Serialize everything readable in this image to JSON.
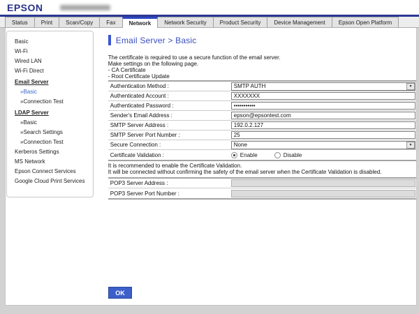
{
  "header": {
    "brand": "EPSON"
  },
  "tabs": {
    "active": "Network",
    "items": [
      {
        "label": "Status"
      },
      {
        "label": "Print"
      },
      {
        "label": "Scan/Copy"
      },
      {
        "label": "Fax"
      },
      {
        "label": "Network"
      },
      {
        "label": "Network Security"
      },
      {
        "label": "Product Security"
      },
      {
        "label": "Device Management"
      },
      {
        "label": "Epson Open Platform"
      }
    ]
  },
  "sidebar": {
    "items": [
      {
        "label": "Basic"
      },
      {
        "label": "Wi-Fi"
      },
      {
        "label": "Wired LAN"
      },
      {
        "label": "Wi-Fi Direct"
      },
      {
        "label": "Email Server"
      },
      {
        "label": "»Basic"
      },
      {
        "label": "»Connection Test"
      },
      {
        "label": "LDAP Server"
      },
      {
        "label": "»Basic"
      },
      {
        "label": "»Search Settings"
      },
      {
        "label": "»Connection Test"
      },
      {
        "label": "Kerberos Settings"
      },
      {
        "label": "MS Network"
      },
      {
        "label": "Epson Connect Services"
      },
      {
        "label": "Google Cloud Print Services"
      }
    ]
  },
  "main": {
    "title": "Email Server > Basic",
    "description_lines": [
      "The certificate is required to use a secure function of the email server.",
      "Make settings on the following page.",
      "- CA Certificate",
      "- Root Certificate Update"
    ],
    "form": {
      "auth_method": {
        "label": "Authentication Method :",
        "value": "SMTP AUTH"
      },
      "auth_account": {
        "label": "Authenticated Account :",
        "value": "XXXXXXX"
      },
      "auth_password": {
        "label": "Authenticated Password :",
        "value": "•••••••••••"
      },
      "sender_email": {
        "label": "Sender's Email Address :",
        "value": "epson@epsontest.com"
      },
      "smtp_address": {
        "label": "SMTP Server Address :",
        "value": "192.0.2.127"
      },
      "smtp_port": {
        "label": "SMTP Server Port Number :",
        "value": "25"
      },
      "secure_connection": {
        "label": "Secure Connection :",
        "value": "None"
      },
      "cert_validation": {
        "label": "Certificate Validation :",
        "options": [
          "Enable",
          "Disable"
        ],
        "selected": "Enable"
      }
    },
    "note_lines": [
      "It is recommended to enable the Certificate Validation.",
      "It will be connected without confirming the safety of the email server when the Certificate Validation is disabled."
    ],
    "pop3": {
      "address": {
        "label": "POP3 Server Address :",
        "value": ""
      },
      "port": {
        "label": "POP3 Server Port Number :",
        "value": ""
      }
    },
    "ok_button": "OK"
  }
}
